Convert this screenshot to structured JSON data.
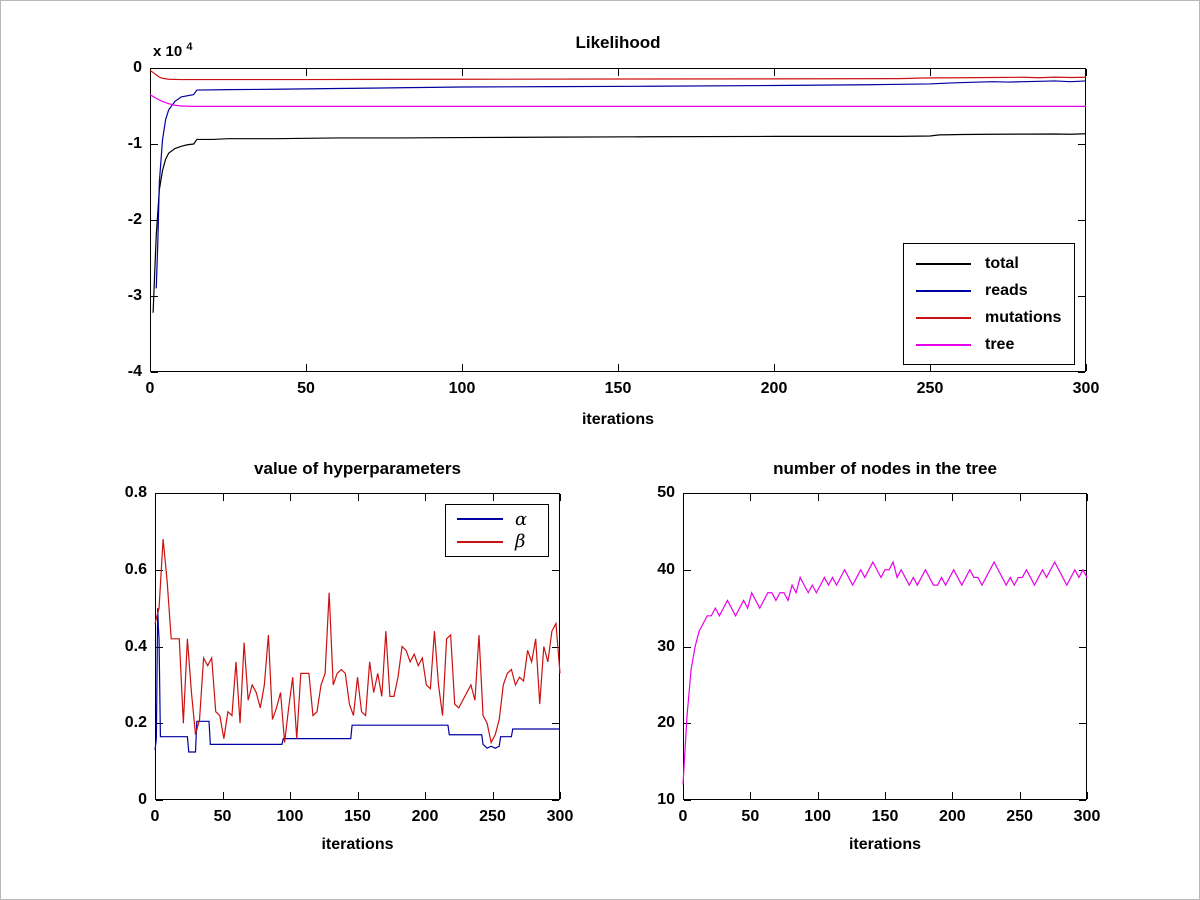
{
  "figure": {
    "background": "#ffffff",
    "border_color": "#b8b8b8"
  },
  "chart_data": [
    {
      "type": "line",
      "title": "Likelihood",
      "xlabel": "iterations",
      "y_scale_label": "x 10",
      "y_scale_exponent": "4",
      "xlim": [
        0,
        300
      ],
      "ylim": [
        -4,
        0
      ],
      "y_units": "1e4",
      "grid": false,
      "xticks": [
        0,
        50,
        100,
        150,
        200,
        250,
        300
      ],
      "xtick_labels": [
        "0",
        "50",
        "100",
        "150",
        "200",
        "250",
        "300"
      ],
      "yticks": [
        0,
        -1,
        -2,
        -3,
        -4
      ],
      "ytick_labels": [
        "0",
        "-1",
        "-2",
        "-3",
        "-4"
      ],
      "legend": {
        "position": "lower right",
        "entries": [
          {
            "label": "total",
            "color": "#000000"
          },
          {
            "label": "reads",
            "color": "#0000a0"
          },
          {
            "label": "mutations",
            "color": "#cc1111"
          },
          {
            "label": "tree",
            "color": "#e800e8"
          }
        ]
      },
      "series": [
        {
          "name": "total",
          "color": "#000000",
          "x": [
            1,
            1.5,
            2,
            3,
            4,
            5,
            6,
            8,
            10,
            12,
            14,
            15,
            20,
            25,
            40,
            60,
            80,
            100,
            130,
            160,
            200,
            240,
            250,
            253,
            256,
            260,
            270,
            280,
            290,
            295,
            300
          ],
          "y": [
            -3.22,
            -2.7,
            -2.2,
            -1.6,
            -1.35,
            -1.2,
            -1.12,
            -1.06,
            -1.03,
            -1.01,
            -1.0,
            -0.94,
            -0.94,
            -0.93,
            -0.93,
            -0.92,
            -0.92,
            -0.915,
            -0.91,
            -0.905,
            -0.9,
            -0.9,
            -0.895,
            -0.88,
            -0.878,
            -0.875,
            -0.872,
            -0.87,
            -0.868,
            -0.872,
            -0.865
          ]
        },
        {
          "name": "reads",
          "color": "#0000a0",
          "x": [
            2,
            2.5,
            3,
            4,
            5,
            6,
            8,
            10,
            14,
            15,
            25,
            40,
            60,
            80,
            100,
            130,
            160,
            200,
            230,
            250,
            255,
            258,
            262,
            266,
            270,
            275,
            280,
            285,
            290,
            295,
            300
          ],
          "y": [
            -2.9,
            -2.3,
            -1.5,
            -0.95,
            -0.68,
            -0.55,
            -0.44,
            -0.38,
            -0.35,
            -0.29,
            -0.285,
            -0.28,
            -0.27,
            -0.26,
            -0.25,
            -0.245,
            -0.24,
            -0.23,
            -0.22,
            -0.21,
            -0.2,
            -0.195,
            -0.19,
            -0.185,
            -0.18,
            -0.185,
            -0.18,
            -0.175,
            -0.17,
            -0.18,
            -0.17
          ]
        },
        {
          "name": "mutations",
          "color": "#cc1111",
          "x": [
            0,
            1,
            2,
            3,
            4,
            6,
            10,
            50,
            100,
            150,
            200,
            240,
            248,
            252,
            260,
            270,
            280,
            285,
            290,
            295,
            300
          ],
          "y": [
            -0.03,
            -0.06,
            -0.09,
            -0.12,
            -0.135,
            -0.148,
            -0.152,
            -0.152,
            -0.148,
            -0.145,
            -0.143,
            -0.14,
            -0.132,
            -0.13,
            -0.128,
            -0.125,
            -0.122,
            -0.128,
            -0.12,
            -0.125,
            -0.122
          ]
        },
        {
          "name": "tree",
          "color": "#e800e8",
          "x": [
            0,
            2,
            4,
            6,
            8,
            10,
            14,
            300
          ],
          "y": [
            -0.35,
            -0.4,
            -0.44,
            -0.47,
            -0.49,
            -0.5,
            -0.505,
            -0.505
          ]
        }
      ]
    },
    {
      "type": "line",
      "title": "value of hyperparameters",
      "xlabel": "iterations",
      "xlim": [
        0,
        300
      ],
      "ylim": [
        0,
        0.8
      ],
      "grid": false,
      "xticks": [
        0,
        50,
        100,
        150,
        200,
        250,
        300
      ],
      "xtick_labels": [
        "0",
        "50",
        "100",
        "150",
        "200",
        "250",
        "300"
      ],
      "yticks": [
        0,
        0.2,
        0.4,
        0.6,
        0.8
      ],
      "ytick_labels": [
        "0",
        "0.2",
        "0.4",
        "0.6",
        "0.8"
      ],
      "legend": {
        "position": "upper right",
        "entries": [
          {
            "label": "α",
            "color": "#0000a0"
          },
          {
            "label": "β",
            "color": "#cc1111"
          }
        ]
      },
      "series": [
        {
          "name": "alpha",
          "color": "#0000a0",
          "x": [
            0,
            1,
            2,
            2.5,
            3,
            4,
            24,
            25,
            30,
            31,
            40,
            41,
            94,
            95,
            145,
            146,
            217,
            218,
            242,
            243,
            246,
            249,
            252,
            255,
            256,
            264,
            265,
            300
          ],
          "y": [
            0.13,
            0.16,
            0.5,
            0.45,
            0.42,
            0.165,
            0.165,
            0.125,
            0.125,
            0.205,
            0.205,
            0.145,
            0.145,
            0.16,
            0.16,
            0.195,
            0.195,
            0.17,
            0.17,
            0.145,
            0.135,
            0.14,
            0.135,
            0.14,
            0.165,
            0.165,
            0.185,
            0.185
          ]
        },
        {
          "name": "beta",
          "color": "#cc1111",
          "xstart": 0,
          "xstep": 3,
          "y": [
            0.46,
            0.5,
            0.68,
            0.57,
            0.42,
            0.42,
            0.42,
            0.2,
            0.42,
            0.28,
            0.17,
            0.21,
            0.37,
            0.35,
            0.37,
            0.23,
            0.22,
            0.16,
            0.23,
            0.22,
            0.36,
            0.2,
            0.41,
            0.26,
            0.3,
            0.28,
            0.24,
            0.3,
            0.43,
            0.21,
            0.24,
            0.28,
            0.15,
            0.24,
            0.32,
            0.16,
            0.33,
            0.33,
            0.33,
            0.22,
            0.23,
            0.3,
            0.33,
            0.54,
            0.3,
            0.33,
            0.34,
            0.33,
            0.25,
            0.22,
            0.32,
            0.23,
            0.22,
            0.36,
            0.28,
            0.33,
            0.27,
            0.44,
            0.27,
            0.27,
            0.32,
            0.4,
            0.39,
            0.36,
            0.38,
            0.35,
            0.37,
            0.3,
            0.29,
            0.44,
            0.3,
            0.22,
            0.42,
            0.43,
            0.25,
            0.24,
            0.26,
            0.28,
            0.3,
            0.26,
            0.43,
            0.22,
            0.2,
            0.15,
            0.17,
            0.21,
            0.3,
            0.33,
            0.34,
            0.3,
            0.32,
            0.31,
            0.39,
            0.36,
            0.42,
            0.25,
            0.4,
            0.36,
            0.44,
            0.46,
            0.33
          ]
        }
      ]
    },
    {
      "type": "line",
      "title": "number of nodes in the tree",
      "xlabel": "iterations",
      "xlim": [
        0,
        300
      ],
      "ylim": [
        10,
        50
      ],
      "grid": false,
      "xticks": [
        0,
        50,
        100,
        150,
        200,
        250,
        300
      ],
      "xtick_labels": [
        "0",
        "50",
        "100",
        "150",
        "200",
        "250",
        "300"
      ],
      "yticks": [
        10,
        20,
        30,
        40,
        50
      ],
      "ytick_labels": [
        "10",
        "20",
        "30",
        "40",
        "50"
      ],
      "series": [
        {
          "name": "nodes",
          "color": "#e800e8",
          "xstart": 0,
          "xstep": 3,
          "y": [
            12,
            21,
            27,
            30,
            32,
            33,
            34,
            34,
            35,
            34,
            35,
            36,
            35,
            34,
            35,
            36,
            35,
            37,
            36,
            35,
            36,
            37,
            37,
            36,
            37,
            37,
            36,
            38,
            37,
            39,
            38,
            37,
            38,
            37,
            38,
            39,
            38,
            39,
            38,
            39,
            40,
            39,
            38,
            39,
            40,
            39,
            40,
            41,
            40,
            39,
            40,
            40,
            41,
            39,
            40,
            39,
            38,
            39,
            38,
            39,
            40,
            39,
            38,
            38,
            39,
            38,
            39,
            40,
            39,
            38,
            39,
            40,
            39,
            39,
            38,
            39,
            40,
            41,
            40,
            39,
            38,
            39,
            38,
            39,
            39,
            40,
            39,
            38,
            39,
            40,
            39,
            40,
            41,
            40,
            39,
            38,
            39,
            40,
            39,
            40,
            39
          ]
        }
      ]
    }
  ]
}
